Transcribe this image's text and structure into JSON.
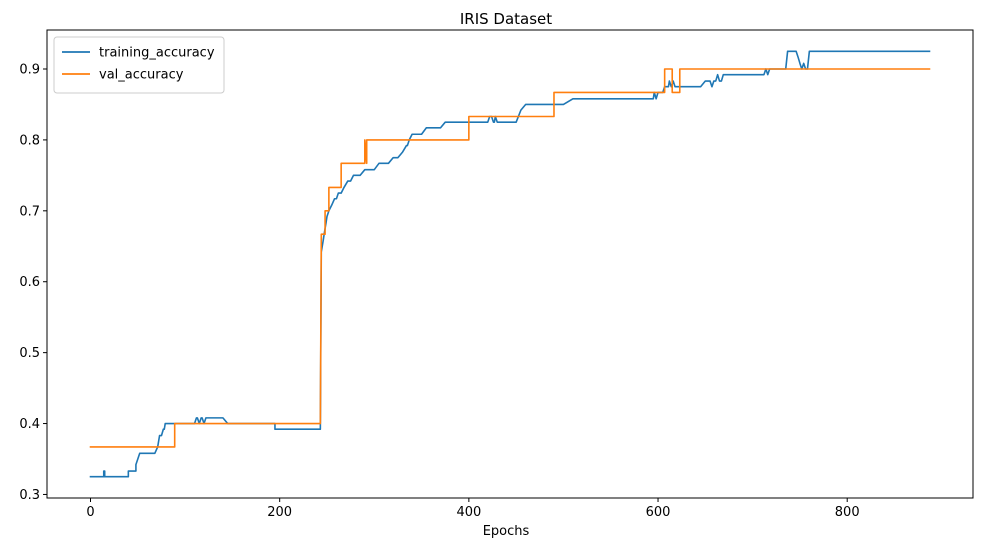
{
  "chart_data": {
    "type": "line",
    "title": "IRIS Dataset",
    "xlabel": "Epochs",
    "ylabel": "",
    "xlim": [
      -46,
      933
    ],
    "ylim": [
      0.295,
      0.955
    ],
    "xticks": [
      0,
      200,
      400,
      600,
      800
    ],
    "yticks": [
      0.3,
      0.4,
      0.5,
      0.6,
      0.7,
      0.8,
      0.9
    ],
    "xtick_labels": [
      "0",
      "200",
      "400",
      "600",
      "800"
    ],
    "ytick_labels": [
      "0.3",
      "0.4",
      "0.5",
      "0.6",
      "0.7",
      "0.8",
      "0.9"
    ],
    "grid": false,
    "legend_position": "top-left",
    "series": [
      {
        "name": "training_accuracy",
        "color": "#1f77b4",
        "x": [
          0,
          14,
          14,
          15,
          15,
          40,
          40,
          48,
          48,
          50,
          52,
          54,
          56,
          57,
          60,
          65,
          68,
          71,
          72,
          73,
          75,
          77,
          78,
          79,
          80,
          81,
          82,
          85,
          95,
          100,
          110,
          112,
          113,
          115,
          117,
          118,
          120,
          122,
          124,
          125,
          127,
          128,
          130,
          135,
          140,
          145,
          146,
          195,
          195,
          243,
          244,
          245,
          246,
          247,
          248,
          249,
          250,
          252,
          255,
          258,
          260,
          262,
          265,
          268,
          272,
          275,
          278,
          280,
          285,
          290,
          295,
          300,
          305,
          310,
          315,
          320,
          325,
          330,
          334,
          335,
          337,
          340,
          345,
          350,
          355,
          360,
          365,
          370,
          375,
          380,
          385,
          390,
          395,
          400,
          405,
          410,
          415,
          420,
          422,
          424,
          426,
          427,
          428,
          430,
          432,
          435,
          438,
          440,
          445,
          450,
          455,
          460,
          465,
          470,
          480,
          490,
          500,
          510,
          520,
          530,
          540,
          550,
          560,
          570,
          580,
          590,
          595,
          596,
          598,
          600,
          602,
          605,
          607,
          609,
          611,
          612,
          614,
          616,
          618,
          625,
          630,
          635,
          640,
          645,
          650,
          655,
          657,
          659,
          661,
          663,
          665,
          667,
          669,
          671,
          675,
          680,
          690,
          700,
          710,
          712,
          714,
          716,
          718,
          720,
          725,
          730,
          735,
          737,
          745,
          746,
          748,
          750,
          752,
          754,
          756,
          758,
          760,
          762,
          790,
          850,
          887
        ],
        "values": [
          0.325,
          0.325,
          0.333,
          0.333,
          0.325,
          0.325,
          0.333,
          0.333,
          0.342,
          0.35,
          0.358,
          0.358,
          0.358,
          0.358,
          0.358,
          0.358,
          0.358,
          0.367,
          0.375,
          0.383,
          0.383,
          0.392,
          0.392,
          0.4,
          0.4,
          0.4,
          0.4,
          0.4,
          0.4,
          0.4,
          0.4,
          0.408,
          0.408,
          0.4,
          0.408,
          0.408,
          0.4,
          0.408,
          0.408,
          0.408,
          0.408,
          0.408,
          0.408,
          0.408,
          0.408,
          0.4,
          0.4,
          0.4,
          0.392,
          0.392,
          0.642,
          0.65,
          0.658,
          0.667,
          0.675,
          0.683,
          0.692,
          0.7,
          0.708,
          0.717,
          0.717,
          0.725,
          0.725,
          0.733,
          0.742,
          0.742,
          0.75,
          0.75,
          0.75,
          0.758,
          0.758,
          0.758,
          0.767,
          0.767,
          0.767,
          0.775,
          0.775,
          0.783,
          0.792,
          0.792,
          0.8,
          0.808,
          0.808,
          0.808,
          0.817,
          0.817,
          0.817,
          0.817,
          0.825,
          0.825,
          0.825,
          0.825,
          0.825,
          0.825,
          0.825,
          0.825,
          0.825,
          0.825,
          0.833,
          0.833,
          0.825,
          0.825,
          0.833,
          0.825,
          0.825,
          0.825,
          0.825,
          0.825,
          0.825,
          0.825,
          0.842,
          0.85,
          0.85,
          0.85,
          0.85,
          0.85,
          0.85,
          0.858,
          0.858,
          0.858,
          0.858,
          0.858,
          0.858,
          0.858,
          0.858,
          0.858,
          0.858,
          0.867,
          0.858,
          0.867,
          0.867,
          0.867,
          0.875,
          0.875,
          0.875,
          0.883,
          0.875,
          0.883,
          0.875,
          0.875,
          0.875,
          0.875,
          0.875,
          0.875,
          0.883,
          0.883,
          0.875,
          0.883,
          0.883,
          0.892,
          0.883,
          0.883,
          0.892,
          0.892,
          0.892,
          0.892,
          0.892,
          0.892,
          0.892,
          0.892,
          0.9,
          0.892,
          0.9,
          0.9,
          0.9,
          0.9,
          0.9,
          0.925,
          0.925,
          0.925,
          0.917,
          0.908,
          0.9,
          0.908,
          0.9,
          0.9,
          0.925,
          0.925,
          0.925,
          0.925,
          0.925
        ]
      },
      {
        "name": "val_accuracy",
        "color": "#ff7f0e",
        "x": [
          0,
          89,
          89,
          243,
          244,
          248,
          248,
          252,
          252,
          265,
          265,
          290,
          290,
          292,
          292,
          400,
          400,
          490,
          490,
          607,
          607,
          615,
          615,
          623,
          623,
          887
        ],
        "values": [
          0.367,
          0.367,
          0.4,
          0.4,
          0.667,
          0.667,
          0.7,
          0.7,
          0.733,
          0.733,
          0.767,
          0.767,
          0.8,
          0.767,
          0.8,
          0.8,
          0.833,
          0.833,
          0.867,
          0.867,
          0.9,
          0.9,
          0.867,
          0.867,
          0.9,
          0.9
        ]
      }
    ]
  }
}
